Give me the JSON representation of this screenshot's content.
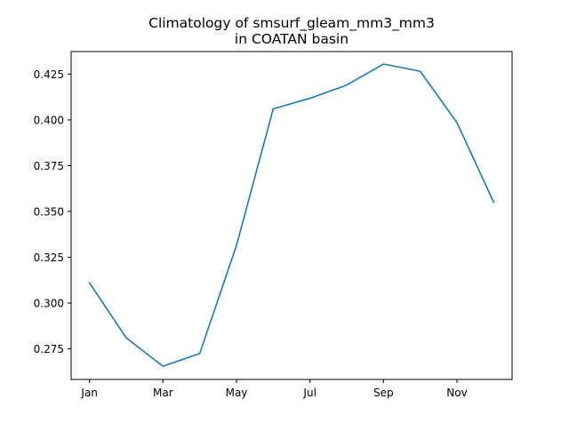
{
  "chart_data": {
    "type": "line",
    "title_line1": "Climatology of smsurf_gleam_mm3_mm3",
    "title_line2": "in COATAN basin",
    "xlabel": "",
    "ylabel": "",
    "x": [
      1,
      2,
      3,
      4,
      5,
      6,
      7,
      8,
      9,
      10,
      11,
      12
    ],
    "x_ticks": [
      {
        "value": 1,
        "label": "Jan"
      },
      {
        "value": 3,
        "label": "Mar"
      },
      {
        "value": 5,
        "label": "May"
      },
      {
        "value": 7,
        "label": "Jul"
      },
      {
        "value": 9,
        "label": "Sep"
      },
      {
        "value": 11,
        "label": "Nov"
      }
    ],
    "y_ticks": [
      "0.275",
      "0.300",
      "0.325",
      "0.350",
      "0.375",
      "0.400",
      "0.425"
    ],
    "xlim": [
      0.5,
      12.5
    ],
    "ylim": [
      0.2583,
      0.4373
    ],
    "grid": false,
    "series": [
      {
        "color": "#1f77b4",
        "values": [
          0.311,
          0.281,
          0.2655,
          0.2725,
          0.3315,
          0.406,
          0.4118,
          0.419,
          0.4305,
          0.4265,
          0.3985,
          0.355
        ]
      }
    ]
  }
}
